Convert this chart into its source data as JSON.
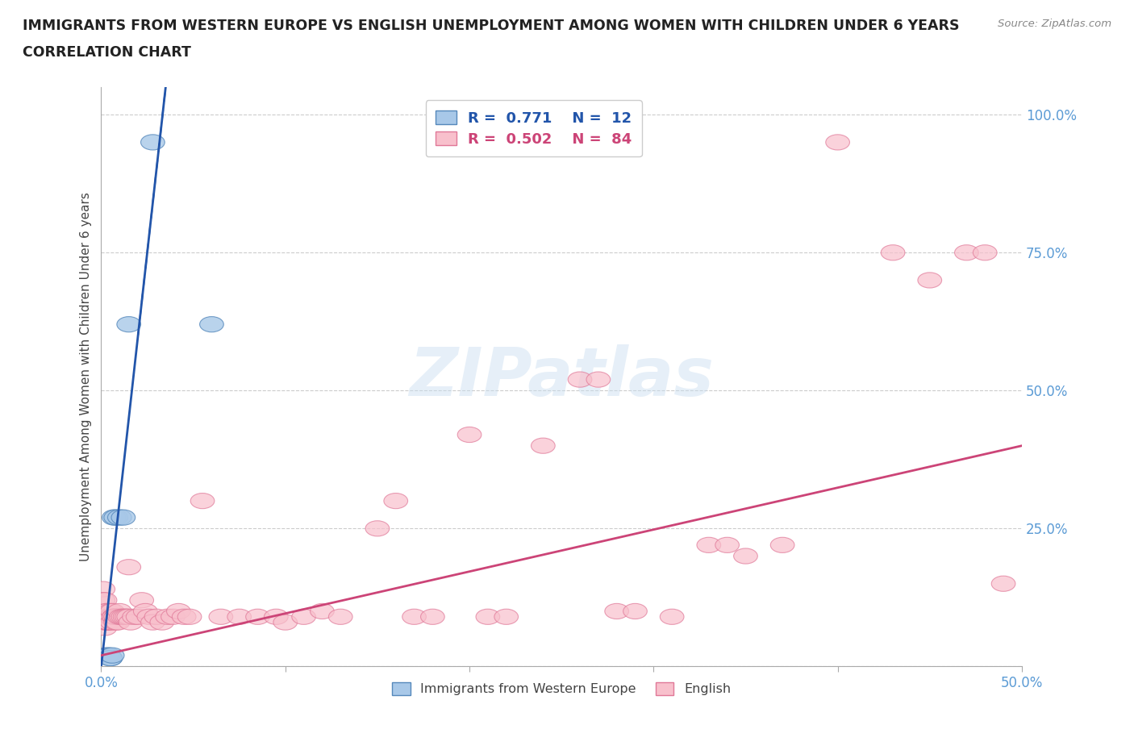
{
  "title_line1": "IMMIGRANTS FROM WESTERN EUROPE VS ENGLISH UNEMPLOYMENT AMONG WOMEN WITH CHILDREN UNDER 6 YEARS",
  "title_line2": "CORRELATION CHART",
  "source_text": "Source: ZipAtlas.com",
  "ylabel": "Unemployment Among Women with Children Under 6 years",
  "xlim": [
    0.0,
    0.5
  ],
  "ylim": [
    0.0,
    1.05
  ],
  "xticks": [
    0.0,
    0.1,
    0.2,
    0.3,
    0.4,
    0.5
  ],
  "xticklabels": [
    "0.0%",
    "",
    "",
    "",
    "",
    "50.0%"
  ],
  "yticks": [
    0.0,
    0.25,
    0.5,
    0.75,
    1.0
  ],
  "yticklabels": [
    "",
    "25.0%",
    "50.0%",
    "75.0%",
    "100.0%"
  ],
  "grid_color": "#cccccc",
  "watermark_text": "ZIPatlas",
  "legend_R1": "0.771",
  "legend_N1": "12",
  "legend_R2": "0.502",
  "legend_N2": "84",
  "blue_face_color": "#a8c8e8",
  "blue_edge_color": "#5588bb",
  "pink_face_color": "#f8c0cc",
  "pink_edge_color": "#e07898",
  "blue_line_color": "#2255aa",
  "pink_line_color": "#cc4477",
  "blue_scatter": [
    [
      0.003,
      0.02
    ],
    [
      0.004,
      0.02
    ],
    [
      0.005,
      0.015
    ],
    [
      0.005,
      0.015
    ],
    [
      0.006,
      0.02
    ],
    [
      0.007,
      0.27
    ],
    [
      0.008,
      0.27
    ],
    [
      0.01,
      0.27
    ],
    [
      0.012,
      0.27
    ],
    [
      0.015,
      0.62
    ],
    [
      0.028,
      0.95
    ],
    [
      0.06,
      0.62
    ]
  ],
  "pink_scatter": [
    [
      0.001,
      0.14
    ],
    [
      0.001,
      0.12
    ],
    [
      0.001,
      0.09
    ],
    [
      0.002,
      0.09
    ],
    [
      0.002,
      0.08
    ],
    [
      0.002,
      0.08
    ],
    [
      0.002,
      0.07
    ],
    [
      0.002,
      0.12
    ],
    [
      0.003,
      0.1
    ],
    [
      0.003,
      0.08
    ],
    [
      0.003,
      0.08
    ],
    [
      0.003,
      0.1
    ],
    [
      0.003,
      0.09
    ],
    [
      0.004,
      0.09
    ],
    [
      0.004,
      0.08
    ],
    [
      0.004,
      0.09
    ],
    [
      0.004,
      0.08
    ],
    [
      0.005,
      0.09
    ],
    [
      0.005,
      0.1
    ],
    [
      0.005,
      0.09
    ],
    [
      0.006,
      0.09
    ],
    [
      0.006,
      0.08
    ],
    [
      0.006,
      0.1
    ],
    [
      0.007,
      0.09
    ],
    [
      0.007,
      0.09
    ],
    [
      0.007,
      0.09
    ],
    [
      0.008,
      0.08
    ],
    [
      0.008,
      0.09
    ],
    [
      0.008,
      0.09
    ],
    [
      0.009,
      0.08
    ],
    [
      0.01,
      0.09
    ],
    [
      0.01,
      0.1
    ],
    [
      0.011,
      0.09
    ],
    [
      0.012,
      0.09
    ],
    [
      0.013,
      0.09
    ],
    [
      0.014,
      0.09
    ],
    [
      0.015,
      0.18
    ],
    [
      0.015,
      0.09
    ],
    [
      0.016,
      0.08
    ],
    [
      0.018,
      0.09
    ],
    [
      0.02,
      0.09
    ],
    [
      0.022,
      0.12
    ],
    [
      0.024,
      0.1
    ],
    [
      0.026,
      0.09
    ],
    [
      0.028,
      0.08
    ],
    [
      0.03,
      0.09
    ],
    [
      0.033,
      0.08
    ],
    [
      0.036,
      0.09
    ],
    [
      0.039,
      0.09
    ],
    [
      0.042,
      0.1
    ],
    [
      0.045,
      0.09
    ],
    [
      0.048,
      0.09
    ],
    [
      0.055,
      0.3
    ],
    [
      0.065,
      0.09
    ],
    [
      0.075,
      0.09
    ],
    [
      0.085,
      0.09
    ],
    [
      0.095,
      0.09
    ],
    [
      0.1,
      0.08
    ],
    [
      0.11,
      0.09
    ],
    [
      0.12,
      0.1
    ],
    [
      0.13,
      0.09
    ],
    [
      0.15,
      0.25
    ],
    [
      0.16,
      0.3
    ],
    [
      0.17,
      0.09
    ],
    [
      0.18,
      0.09
    ],
    [
      0.2,
      0.42
    ],
    [
      0.21,
      0.09
    ],
    [
      0.22,
      0.09
    ],
    [
      0.24,
      0.4
    ],
    [
      0.26,
      0.52
    ],
    [
      0.27,
      0.52
    ],
    [
      0.28,
      0.1
    ],
    [
      0.29,
      0.1
    ],
    [
      0.31,
      0.09
    ],
    [
      0.33,
      0.22
    ],
    [
      0.34,
      0.22
    ],
    [
      0.35,
      0.2
    ],
    [
      0.37,
      0.22
    ],
    [
      0.4,
      0.95
    ],
    [
      0.43,
      0.75
    ],
    [
      0.45,
      0.7
    ],
    [
      0.47,
      0.75
    ],
    [
      0.48,
      0.75
    ],
    [
      0.49,
      0.15
    ]
  ],
  "blue_line_x": [
    0.0,
    0.035
  ],
  "blue_line_y": [
    0.0,
    1.05
  ],
  "blue_line_solid_start": 0.005,
  "pink_line_x_start": 0.0,
  "pink_line_x_end": 0.5,
  "pink_line_y_start": 0.02,
  "pink_line_y_end": 0.4
}
